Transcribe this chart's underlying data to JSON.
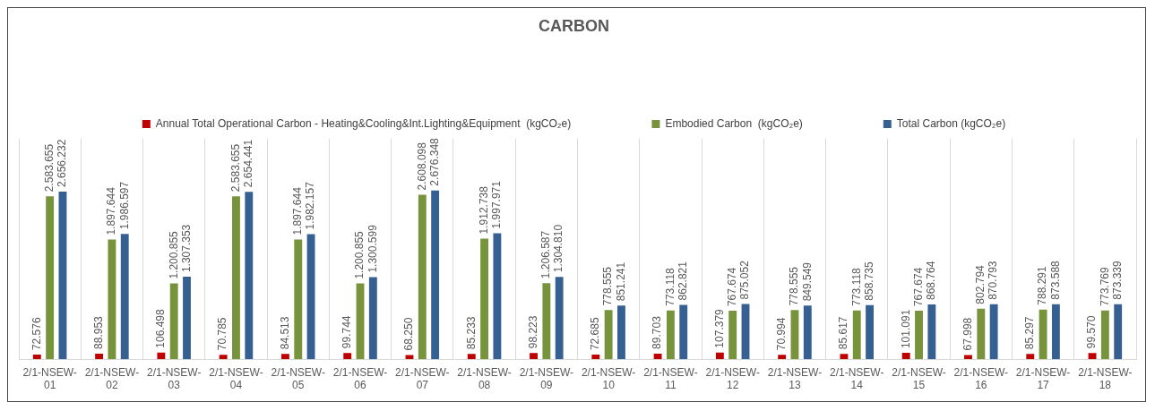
{
  "chart_data": {
    "type": "bar",
    "title": "CARBON",
    "relative": false,
    "categories": [
      "2/1-NSEW-01",
      "2/1-NSEW-02",
      "2/1-NSEW-03",
      "2/1-NSEW-04",
      "2/1-NSEW-05",
      "2/1-NSEW-06",
      "2/1-NSEW-07",
      "2/1-NSEW-08",
      "2/1-NSEW-09",
      "2/1-NSEW-10",
      "2/1-NSEW-11",
      "2/1-NSEW-12",
      "2/1-NSEW-13",
      "2/1-NSEW-14",
      "2/1-NSEW-15",
      "2/1-NSEW-16",
      "2/1-NSEW-17",
      "2/1-NSEW-18"
    ],
    "series": [
      {
        "name": "Annual Total Operational Carbon - Heating&Cooling&Int.Lighting&Equipment  (kgCO₂e)",
        "color": "#c00000",
        "values": [
          72576,
          88953,
          106498,
          70785,
          84513,
          99744,
          68250,
          85233,
          98223,
          72685,
          89703,
          107379,
          70994,
          85617,
          101091,
          67998,
          85297,
          99570
        ],
        "value_labels": [
          "72.576",
          "88.953",
          "106.498",
          "70.785",
          "84.513",
          "99.744",
          "68.250",
          "85.233",
          "98.223",
          "72.685",
          "89.703",
          "107.379",
          "70.994",
          "85.617",
          "101.091",
          "67.998",
          "85.297",
          "99.570"
        ]
      },
      {
        "name": "Embodied Carbon  (kgCO₂e)",
        "color": "#77933c",
        "values": [
          2583655,
          1897644,
          1200855,
          2583655,
          1897644,
          1200855,
          2608098,
          1912738,
          1206587,
          778555,
          773118,
          767674,
          778555,
          773118,
          767674,
          802794,
          788291,
          773769
        ],
        "value_labels": [
          "2.583.655",
          "1.897.644",
          "1.200.855",
          "2.583.655",
          "1.897.644",
          "1.200.855",
          "2.608.098",
          "1.912.738",
          "1.206.587",
          "778.555",
          "773.118",
          "767.674",
          "778.555",
          "773.118",
          "767.674",
          "802.794",
          "788.291",
          "773.769"
        ]
      },
      {
        "name": "Total Carbon (kgCO₂e)",
        "color": "#376092",
        "values": [
          2656232,
          1986597,
          1307353,
          2654441,
          1982157,
          1300599,
          2676348,
          1997971,
          1304810,
          851241,
          862821,
          875052,
          849549,
          858735,
          868764,
          870793,
          873588,
          873339
        ],
        "value_labels": [
          "2.656.232",
          "1.986.597",
          "1.307.353",
          "2.654.441",
          "1.982.157",
          "1.300.599",
          "2.676.348",
          "1.997.971",
          "1.304.810",
          "851.241",
          "862.821",
          "875.052",
          "849.549",
          "858.735",
          "868.764",
          "870.793",
          "873.588",
          "873.339"
        ]
      }
    ],
    "grid": "x",
    "legend": "top"
  }
}
